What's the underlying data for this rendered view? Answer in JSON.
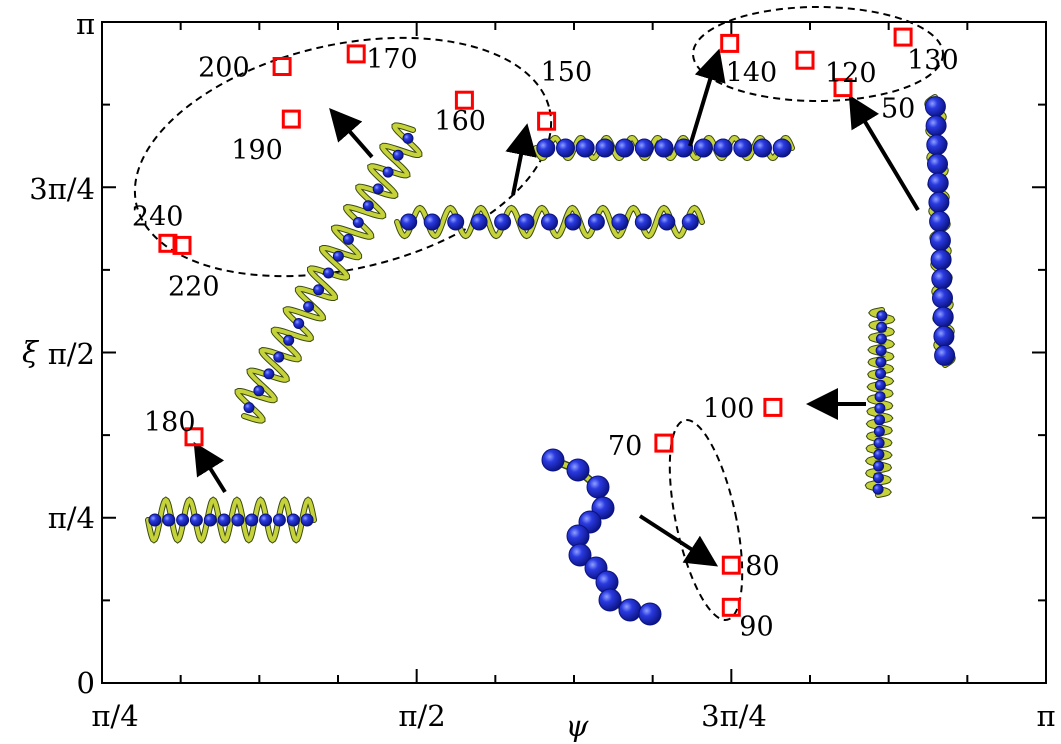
{
  "chart_data": {
    "type": "scatter",
    "title": "",
    "xlabel": "ψ",
    "ylabel": "ξ",
    "xlim": [
      0.7854,
      3.1416
    ],
    "ylim": [
      0,
      3.1416
    ],
    "x_ticks": [
      {
        "value": 0.7854,
        "label": "π/4"
      },
      {
        "value": 1.5708,
        "label": "π/2"
      },
      {
        "value": 2.3562,
        "label": "3π/4"
      },
      {
        "value": 3.1416,
        "label": "π"
      }
    ],
    "y_ticks": [
      {
        "value": 0,
        "label": "0"
      },
      {
        "value": 0.7854,
        "label": "π/4"
      },
      {
        "value": 1.5708,
        "label": "π/2"
      },
      {
        "value": 2.3562,
        "label": "3π/4"
      },
      {
        "value": 3.1416,
        "label": "π"
      }
    ],
    "marker": {
      "shape": "open-square",
      "color": "#ff0000"
    },
    "points": [
      {
        "label": "50",
        "x": 2.635,
        "y": 2.83
      },
      {
        "label": "70",
        "x": 2.188,
        "y": 1.14
      },
      {
        "label": "80",
        "x": 2.356,
        "y": 0.56
      },
      {
        "label": "90",
        "x": 2.356,
        "y": 0.36
      },
      {
        "label": "100",
        "x": 2.46,
        "y": 1.31
      },
      {
        "label": "120",
        "x": 2.54,
        "y": 2.96
      },
      {
        "label": "130",
        "x": 2.785,
        "y": 3.07
      },
      {
        "label": "140",
        "x": 2.352,
        "y": 3.04
      },
      {
        "label": "150",
        "x": 1.895,
        "y": 2.67
      },
      {
        "label": "160",
        "x": 1.69,
        "y": 2.77
      },
      {
        "label": "170",
        "x": 1.42,
        "y": 2.99
      },
      {
        "label": "180",
        "x": 1.015,
        "y": 1.17
      },
      {
        "label": "190",
        "x": 1.258,
        "y": 2.68
      },
      {
        "label": "200",
        "x": 1.235,
        "y": 2.93
      },
      {
        "label": "220",
        "x": 0.985,
        "y": 2.08
      },
      {
        "label": "240",
        "x": 0.95,
        "y": 2.09
      }
    ],
    "annotation_ellipses": 4,
    "annotation_arrows": 8,
    "grid": false
  },
  "colors": {
    "marker": "#ff0000",
    "helix_ribbon": "#c5d23a",
    "helix_outline": "#3a4a10",
    "bead": "#1f2fd6",
    "bead_dark": "#0a1280",
    "axis": "#000000",
    "ellipse": "#000000"
  }
}
